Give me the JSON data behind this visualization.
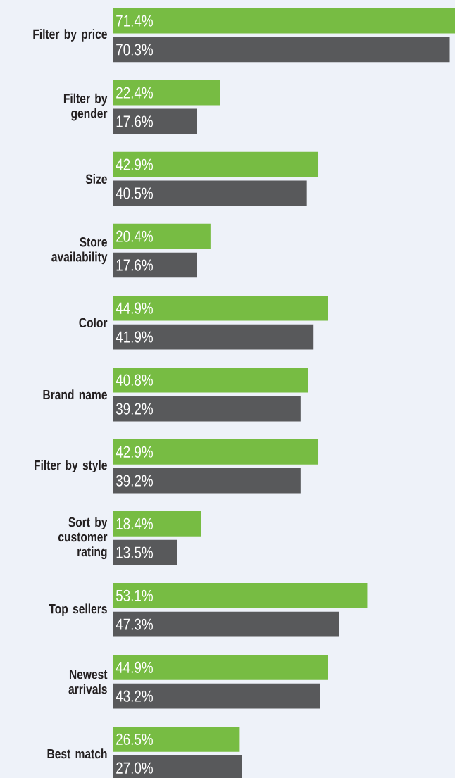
{
  "chart_data": {
    "type": "bar",
    "orientation": "horizontal",
    "categories": [
      "Filter by price",
      "Filter by gender",
      "Size",
      "Store availability",
      "Color",
      "Brand name",
      "Filter by style",
      "Sort by customer rating",
      "Top sellers",
      "Newest arrivals",
      "Best match"
    ],
    "series": [
      {
        "color": "#77bc43",
        "values": [
          71.4,
          22.4,
          42.9,
          20.4,
          44.9,
          40.8,
          42.9,
          18.4,
          53.1,
          44.9,
          26.5
        ],
        "value_labels": [
          "71.4%",
          "22.4%",
          "42.9%",
          "20.4%",
          "44.9%",
          "40.8%",
          "42.9%",
          "18.4%",
          "53.1%",
          "44.9%",
          "26.5%"
        ]
      },
      {
        "color": "#58595b",
        "values": [
          70.3,
          17.6,
          40.5,
          17.6,
          41.9,
          39.2,
          39.2,
          13.5,
          47.3,
          43.2,
          27.0
        ],
        "value_labels": [
          "70.3%",
          "17.6%",
          "40.5%",
          "17.6%",
          "41.9%",
          "39.2%",
          "39.2%",
          "13.5%",
          "47.3%",
          "43.2%",
          "27.0%"
        ]
      }
    ]
  }
}
